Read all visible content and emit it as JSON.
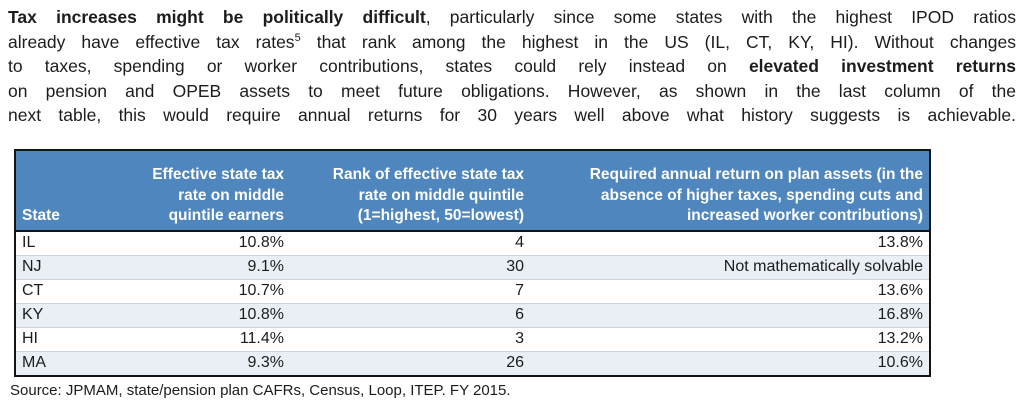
{
  "paragraph": {
    "lines": [
      [
        {
          "t": "Tax increases might be politically difficult",
          "b": true
        },
        {
          "t": ", particularly since some states with the highest IPOD ratios",
          "b": false
        }
      ],
      [
        {
          "t": "already have effective tax rates",
          "b": false
        },
        {
          "t": "5",
          "sup": true
        },
        {
          "t": " that rank among the highest in the US (IL, CT, KY, HI).  Without changes",
          "b": false
        }
      ],
      [
        {
          "t": "to taxes, spending or worker contributions, states could rely instead on ",
          "b": false
        },
        {
          "t": "elevated investment returns",
          "b": true
        }
      ],
      [
        {
          "t": "on pension and OPEB assets to meet future obligations.  However, as shown in the last column of the",
          "b": false
        }
      ],
      [
        {
          "t": "next table, this would require annual returns for 30 years well above what history suggests is achievable.",
          "b": false
        }
      ]
    ]
  },
  "table": {
    "columns": [
      {
        "lines": [
          "State"
        ],
        "align": "left"
      },
      {
        "lines": [
          "Effective state tax",
          "rate on middle",
          "quintile earners"
        ],
        "align": "right"
      },
      {
        "lines": [
          "Rank of effective state tax",
          "rate on middle quintile",
          "(1=highest, 50=lowest)"
        ],
        "align": "right"
      },
      {
        "lines": [
          "Required annual return on plan assets (in the",
          "absence of higher taxes, spending cuts and",
          "increased worker contributions)"
        ],
        "align": "right"
      }
    ],
    "rows": [
      [
        "IL",
        "10.8%",
        "4",
        "13.8%"
      ],
      [
        "NJ",
        "9.1%",
        "30",
        "Not mathematically solvable"
      ],
      [
        "CT",
        "10.7%",
        "7",
        "13.6%"
      ],
      [
        "KY",
        "10.8%",
        "6",
        "16.8%"
      ],
      [
        "HI",
        "11.4%",
        "3",
        "13.2%"
      ],
      [
        "MA",
        "9.3%",
        "26",
        "10.6%"
      ]
    ]
  },
  "source": "Source: JPMAM, state/pension plan CAFRs, Census, Loop, ITEP. FY 2015.",
  "colors": {
    "header_bg": "#4e86bd",
    "header_text": "#ffffff",
    "stripe": "#e9eff4",
    "border": "#141414",
    "row_line": "#ccd5dc"
  }
}
